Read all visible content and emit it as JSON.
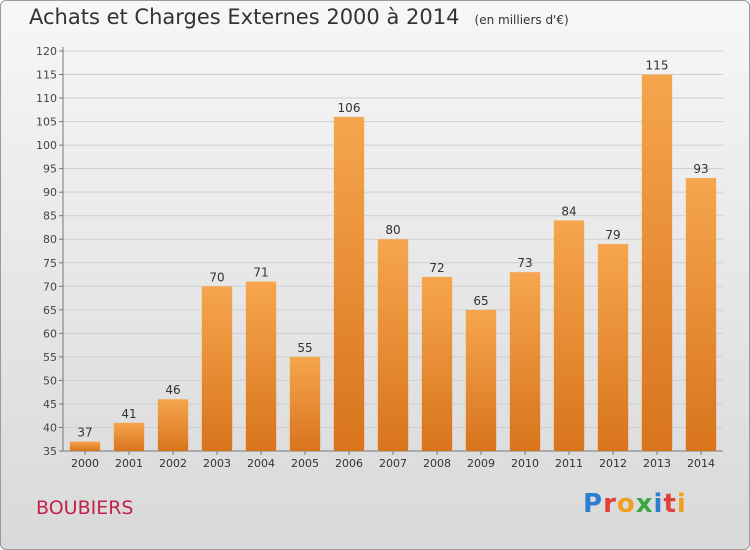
{
  "title": "Achats et Charges Externes 2000 à 2014",
  "subtitle": "(en milliers d'€)",
  "town": "BOUBIERS",
  "logo": {
    "text": "Proxiti",
    "colors": [
      "#2b7fd0",
      "#e0403a",
      "#f0a020",
      "#3aa845",
      "#2b7fd0",
      "#e0403a",
      "#f0a020"
    ]
  },
  "colors": {
    "bar_light": "#f6a64e",
    "bar_dark": "#d8741c",
    "town": "#c0234a"
  },
  "chart_data": {
    "type": "bar",
    "categories": [
      "2000",
      "2001",
      "2002",
      "2003",
      "2004",
      "2005",
      "2006",
      "2007",
      "2008",
      "2009",
      "2010",
      "2011",
      "2012",
      "2013",
      "2014"
    ],
    "values": [
      37,
      41,
      46,
      70,
      71,
      55,
      106,
      80,
      72,
      65,
      73,
      84,
      79,
      115,
      93
    ],
    "ylim": [
      35,
      120
    ],
    "yticks": [
      35,
      40,
      45,
      50,
      55,
      60,
      65,
      70,
      75,
      80,
      85,
      90,
      95,
      100,
      105,
      110,
      115,
      120
    ],
    "grid": true,
    "data_labels": true
  }
}
